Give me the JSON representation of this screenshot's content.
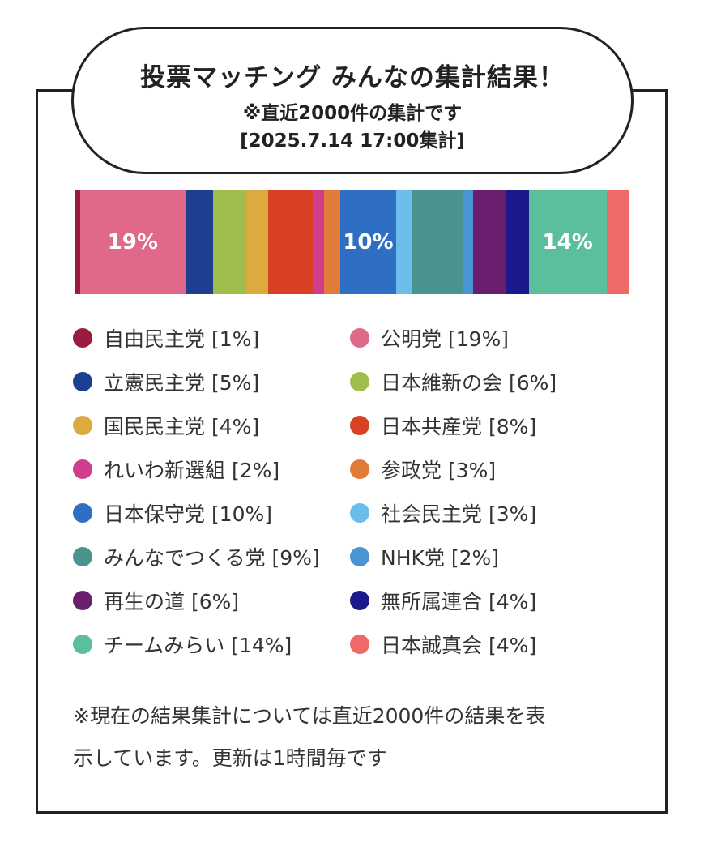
{
  "header": {
    "title": "投票マッチング みんなの集計結果！",
    "subtitle": "※直近2000件の集計です",
    "timestamp": "[2025.7.14 17:00集計]"
  },
  "chart_data": {
    "type": "bar",
    "stacked": true,
    "orientation": "horizontal",
    "unit": "%",
    "segments": [
      {
        "name": "自由民主党",
        "value": 1,
        "color": "#9b1b3f",
        "label": ""
      },
      {
        "name": "公明党",
        "value": 19,
        "color": "#e0698a",
        "label": "19%"
      },
      {
        "name": "立憲民主党",
        "value": 5,
        "color": "#1d3f8f",
        "label": ""
      },
      {
        "name": "日本維新の会",
        "value": 6,
        "color": "#9ebd4d",
        "label": ""
      },
      {
        "name": "国民民主党",
        "value": 4,
        "color": "#dcab3f",
        "label": ""
      },
      {
        "name": "日本共産党",
        "value": 8,
        "color": "#d84124",
        "label": ""
      },
      {
        "name": "れいわ新選組",
        "value": 2,
        "color": "#cf3d8c",
        "label": ""
      },
      {
        "name": "参政党",
        "value": 3,
        "color": "#e07b38",
        "label": ""
      },
      {
        "name": "日本保守党",
        "value": 10,
        "color": "#2e6fc4",
        "label": "10%"
      },
      {
        "name": "社会民主党",
        "value": 3,
        "color": "#6bbdea",
        "label": ""
      },
      {
        "name": "みんなでつくる党",
        "value": 9,
        "color": "#4a9490",
        "label": ""
      },
      {
        "name": "NHK党",
        "value": 2,
        "color": "#4a94d4",
        "label": ""
      },
      {
        "name": "再生の道",
        "value": 6,
        "color": "#6a1e6e",
        "label": ""
      },
      {
        "name": "無所属連合",
        "value": 4,
        "color": "#1a1a8c",
        "label": ""
      },
      {
        "name": "チームみらい",
        "value": 14,
        "color": "#5cbf9b",
        "label": "14%"
      },
      {
        "name": "日本誠真会",
        "value": 4,
        "color": "#ee6a66",
        "label": ""
      }
    ]
  },
  "legend": [
    {
      "text": "自由民主党 [1%]",
      "color": "#9b1b3f"
    },
    {
      "text": "公明党 [19%]",
      "color": "#e0698a"
    },
    {
      "text": "立憲民主党 [5%]",
      "color": "#1d3f8f"
    },
    {
      "text": "日本維新の会 [6%]",
      "color": "#9ebd4d"
    },
    {
      "text": "国民民主党 [4%]",
      "color": "#dcab3f"
    },
    {
      "text": "日本共産党 [8%]",
      "color": "#d84124"
    },
    {
      "text": "れいわ新選組 [2%]",
      "color": "#cf3d8c"
    },
    {
      "text": "参政党 [3%]",
      "color": "#e07b38"
    },
    {
      "text": "日本保守党 [10%]",
      "color": "#2e6fc4"
    },
    {
      "text": "社会民主党 [3%]",
      "color": "#6bbdea"
    },
    {
      "text": "みんなでつくる党 [9%]",
      "color": "#4a9490"
    },
    {
      "text": "NHK党 [2%]",
      "color": "#4a94d4"
    },
    {
      "text": "再生の道 [6%]",
      "color": "#6a1e6e"
    },
    {
      "text": "無所属連合 [4%]",
      "color": "#1a1a8c"
    },
    {
      "text": "チームみらい [14%]",
      "color": "#5cbf9b"
    },
    {
      "text": "日本誠真会 [4%]",
      "color": "#ee6a66"
    }
  ],
  "footer": {
    "note_line1": "※現在の結果集計については直近2000件の結果を表",
    "note_line2": "示しています。更新は1時間毎です"
  }
}
